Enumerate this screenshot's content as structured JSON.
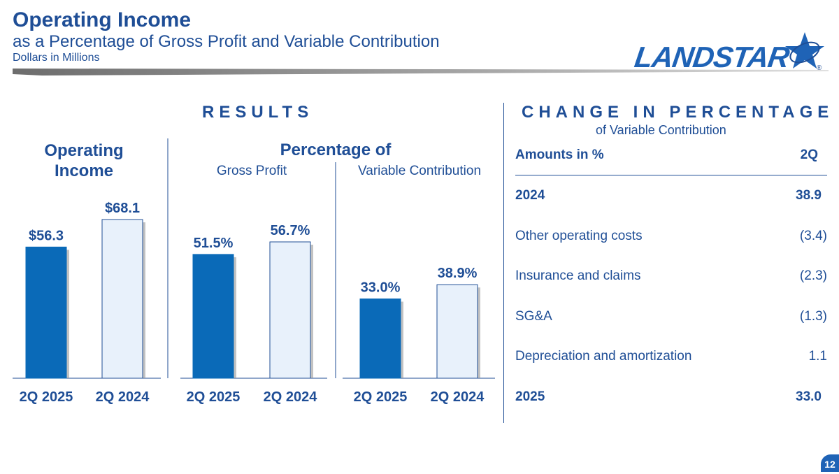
{
  "header": {
    "title": "Operating Income",
    "subtitle": "as a Percentage of Gross Profit and Variable Contribution",
    "units": "Dollars in Millions",
    "logo_text": "LANDSTAR",
    "registered": "®"
  },
  "results": {
    "heading": "RESULTS",
    "pct_heading": "Percentage of"
  },
  "chart_data": [
    {
      "type": "bar",
      "title": "Operating Income",
      "subtitle": "",
      "categories": [
        "2Q 2025",
        "2Q 2024"
      ],
      "values": [
        56.3,
        68.1
      ],
      "labels": [
        "$56.3",
        "$68.1"
      ],
      "ylim": [
        0,
        80
      ]
    },
    {
      "type": "bar",
      "title": "Percentage of",
      "subtitle": "Gross Profit",
      "categories": [
        "2Q 2025",
        "2Q 2024"
      ],
      "values": [
        51.5,
        56.7
      ],
      "labels": [
        "51.5%",
        "56.7%"
      ],
      "ylim": [
        0,
        72
      ]
    },
    {
      "type": "bar",
      "title": "Percentage of",
      "subtitle": "Variable Contribution",
      "categories": [
        "2Q 2025",
        "2Q 2024"
      ],
      "values": [
        33.0,
        38.9
      ],
      "labels": [
        "33.0%",
        "38.9%"
      ],
      "ylim": [
        0,
        72
      ]
    }
  ],
  "change": {
    "heading": "CHANGE IN PERCENTAGE",
    "subheading": "of Variable Contribution",
    "col_label": "Amounts in %",
    "col_period": "2Q",
    "rows": [
      {
        "label": "2024",
        "value": "38.9",
        "bold": true
      },
      {
        "label": "Other operating costs",
        "value": "(3.4)",
        "bold": false
      },
      {
        "label": "Insurance and claims",
        "value": "(2.3)",
        "bold": false
      },
      {
        "label": "SG&A",
        "value": "(1.3)",
        "bold": false
      },
      {
        "label": "Depreciation and amortization",
        "value": "1.1",
        "bold": false
      },
      {
        "label": "2025",
        "value": "33.0",
        "bold": true
      }
    ]
  },
  "colors": {
    "primary": "#1f4e96",
    "bar_current": "#0a6ab8",
    "bar_prior": "#e8f1fb",
    "divider": "#1f4e96"
  },
  "page_number": "12"
}
